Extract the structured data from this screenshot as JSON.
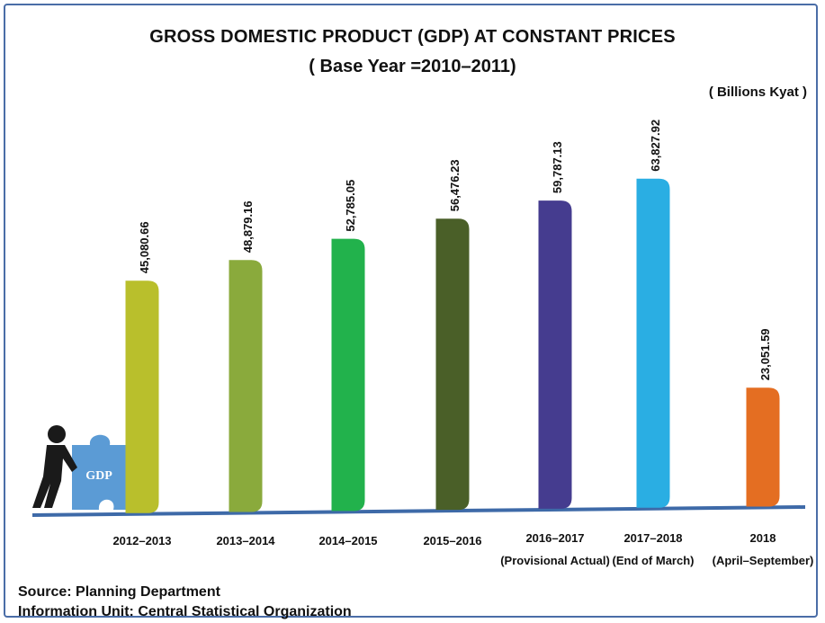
{
  "title": "GROSS DOMESTIC  PRODUCT (GDP) AT CONSTANT PRICES",
  "subtitle": "( Base Year =2010–2011)",
  "unit": "( Billions Kyat )",
  "source_line1": "Source:  Planning Department",
  "source_line2": "Information Unit:  Central Statistical Organization",
  "icon_text": "GDP",
  "chart_data": {
    "type": "bar",
    "title": "GROSS DOMESTIC  PRODUCT (GDP) AT CONSTANT PRICES",
    "subtitle": "( Base Year =2010–2011)",
    "ylabel": "( Billions Kyat )",
    "categories": [
      "2012–2013",
      "2013–2014",
      "2014–2015",
      "2015–2016",
      "2016–2017",
      "2017–2018",
      "2018"
    ],
    "category_sublabels": [
      "",
      "",
      "",
      "",
      "(Provisional Actual)",
      "(End of March)",
      "(April–September)"
    ],
    "values": [
      45080.66,
      48879.16,
      52785.05,
      56476.23,
      59787.13,
      63827.92,
      23051.59
    ],
    "value_labels": [
      "45,080.66",
      "48,879.16",
      "52,785.05",
      "56,476.23",
      "59,787.13",
      "63,827.92",
      "23,051.59"
    ],
    "colors": [
      "#b9bf2c",
      "#8aaa3c",
      "#22b24c",
      "#4a5f28",
      "#453c8f",
      "#2aaee3",
      "#e46e22"
    ],
    "grid": false,
    "legend": "none"
  }
}
